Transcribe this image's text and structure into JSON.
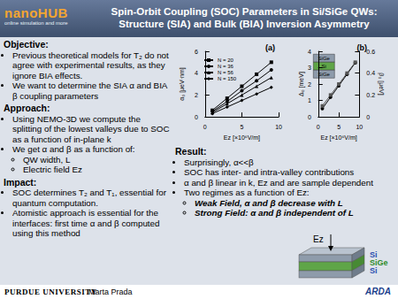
{
  "header": {
    "logo": "nanoHUB",
    "logo_sub": "online simulation and more",
    "title": [
      "Spin-Orbit Coupling (SOC) Parameters in Si/SiGe QWs:",
      "Structure (SIA) and Bulk (BIA) Inversion Asymmetry"
    ]
  },
  "sections": [
    {
      "heading": "Objective:",
      "bullets": [
        {
          "text": "Previous theoretical models for T₂ do not agree with experimental results, as they ignore BIA effects."
        },
        {
          "text": "We want to determine the SIA α and BIA β coupling parameters"
        }
      ]
    },
    {
      "heading": "Approach:",
      "bullets": [
        {
          "text": "Using NEMO-3D we compute the splitting of the lowest valleys due to SOC as a function of in-plane k"
        },
        {
          "text": "We get α and β as a function of:",
          "sub": [
            "QW width, L",
            "Electric field Ez"
          ]
        }
      ]
    },
    {
      "heading": "Impact:",
      "bullets": [
        {
          "text": "SOC determines T₂ and T₁, essential for quantum computation."
        },
        {
          "text": "Atomistic approach is essential for the interfaces: first time α and β computed using this method"
        }
      ]
    }
  ],
  "result": {
    "heading": "Result:",
    "bullets": [
      {
        "text": "Surprisingly, α<<β"
      },
      {
        "text": "SOC has inter- and intra-valley contributions"
      },
      {
        "text": "α and β linear in k, Ez and are sample dependent"
      },
      {
        "text": "Two regimes as a function of Ez:",
        "sub": [
          "Weak Field, α and β decrease with L",
          "Strong Field: α and β independent of L"
        ]
      }
    ]
  },
  "diagram": {
    "field": "Ez",
    "layers": [
      "Si",
      "SiGe",
      "Si"
    ]
  },
  "footer": {
    "university": "PURDUE UNIVERSITY",
    "author": "Marta Prada",
    "sponsor": "ARDA"
  },
  "chart_data": [
    {
      "type": "line",
      "title": "(a)",
      "x_label": "Ez [×10⁶V/m]",
      "y_label": "α₀ [μeV·nm]",
      "x": [
        1,
        3,
        5,
        7,
        9
      ],
      "series": [
        {
          "name": "N = 20",
          "color": "#000000",
          "marker": "square",
          "values": [
            0.6,
            1.7,
            2.8,
            3.9,
            5.0
          ]
        },
        {
          "name": "N = 36",
          "color": "#000000",
          "marker": "circle",
          "values": [
            0.5,
            1.4,
            2.4,
            3.3,
            4.3
          ]
        },
        {
          "name": "N = 56",
          "color": "#000000",
          "marker": "triangle",
          "values": [
            0.4,
            1.2,
            2.0,
            2.8,
            3.6
          ]
        },
        {
          "name": "N = 150",
          "color": "#000000",
          "marker": "diamond",
          "values": [
            0.3,
            0.9,
            1.5,
            2.1,
            2.7
          ]
        }
      ],
      "xlim": [
        0,
        10
      ],
      "xticks": [
        0,
        5,
        10
      ],
      "ylim": [
        0,
        6
      ],
      "yticks": [
        0,
        2,
        4,
        6
      ],
      "legend": "upper left",
      "grid": false
    },
    {
      "type": "line",
      "title": "(b)",
      "x_label": "Ez [×10⁶V/m]",
      "y_label": "Δ₀ [meV]",
      "y2_label": "β₀ [μeV]",
      "annotations": [
        "SiGe",
        "Si",
        "SiGe"
      ],
      "x": [
        1,
        3,
        5,
        7,
        9
      ],
      "series": [
        {
          "color": "#000000",
          "marker": "circle",
          "values": [
            0.5,
            1.2,
            1.9,
            2.6,
            3.3
          ]
        },
        {
          "color": "#555555",
          "marker": "square",
          "axis": "y2",
          "values": [
            0.1,
            0.2,
            0.3,
            0.4,
            0.5
          ]
        }
      ],
      "xlim": [
        0,
        10
      ],
      "xticks": [
        0,
        5,
        10
      ],
      "ylim": [
        0,
        4
      ],
      "yticks": [
        0,
        1,
        2,
        3,
        4
      ],
      "y2lim": [
        0,
        0.6
      ],
      "y2ticks": [
        0,
        0.2,
        0.4,
        0.6
      ],
      "grid": false
    }
  ]
}
